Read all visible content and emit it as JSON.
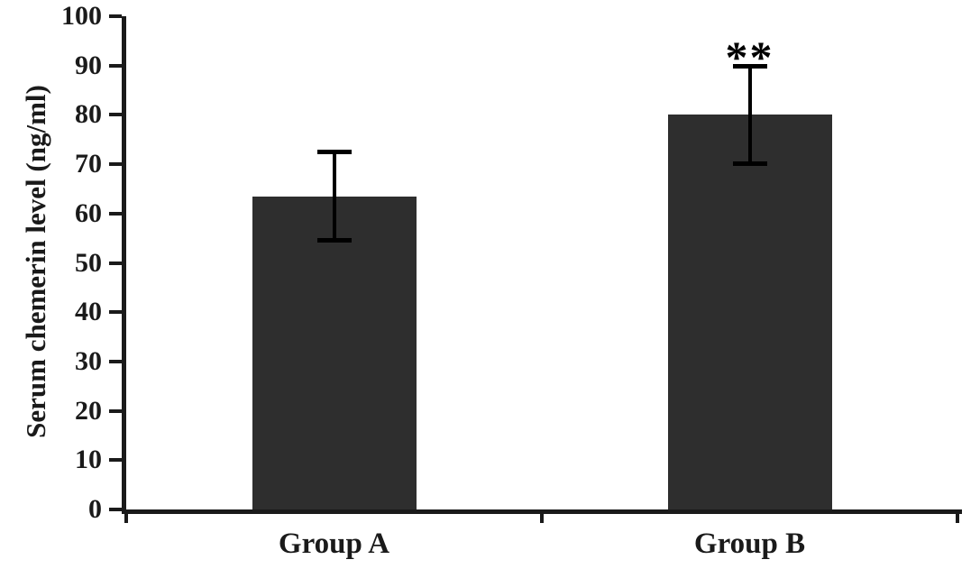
{
  "chart_data": {
    "type": "bar",
    "title": "",
    "xlabel": "",
    "ylabel": "Serum chemerin level (ng/ml)",
    "categories": [
      "Group A",
      "Group B"
    ],
    "values": [
      63.5,
      80
    ],
    "error_bars": [
      9,
      10
    ],
    "significance": [
      "",
      "**"
    ],
    "ylim": [
      0,
      100
    ],
    "ytick_step": 10,
    "grid": false,
    "legend": "none",
    "bar_color": "#2e2e2e",
    "axis_color": "#1a1a1a",
    "background_color": "#ffffff"
  }
}
